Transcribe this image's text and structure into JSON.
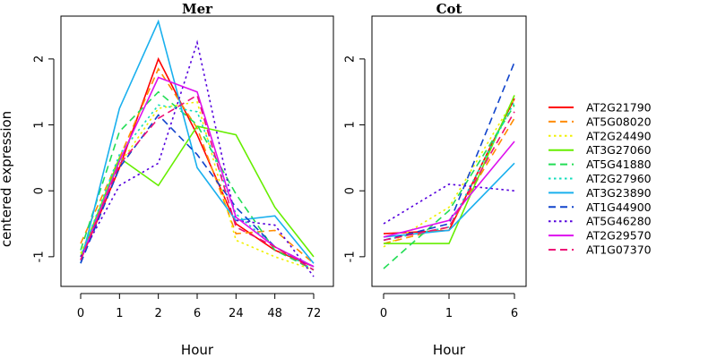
{
  "figure": {
    "ylabel": "centered expression",
    "legend": {
      "placement": "right",
      "entries": [
        {
          "name": "AT2G21790",
          "color": "#ff0000",
          "dash": "solid"
        },
        {
          "name": "AT5G08020",
          "color": "#ff8c00",
          "dash": "dashed"
        },
        {
          "name": "AT2G24490",
          "color": "#f0f000",
          "dash": "dotted"
        },
        {
          "name": "AT3G27060",
          "color": "#66ee00",
          "dash": "solid"
        },
        {
          "name": "AT5G41880",
          "color": "#22dd55",
          "dash": "dashed"
        },
        {
          "name": "AT2G27960",
          "color": "#11ddbb",
          "dash": "dotted"
        },
        {
          "name": "AT3G23890",
          "color": "#1ab0ee",
          "dash": "solid"
        },
        {
          "name": "AT1G44900",
          "color": "#1144cc",
          "dash": "dashed"
        },
        {
          "name": "AT5G46280",
          "color": "#5500dd",
          "dash": "dotted"
        },
        {
          "name": "AT2G29570",
          "color": "#dd11ee",
          "dash": "solid"
        },
        {
          "name": "AT1G07370",
          "color": "#ee1177",
          "dash": "dashed"
        }
      ]
    }
  },
  "chart_data": [
    {
      "type": "line",
      "title": "Mer",
      "xlabel": "Hour",
      "ylabel": "centered expression",
      "categories": [
        "0",
        "1",
        "2",
        "6",
        "24",
        "48",
        "72"
      ],
      "ylim": [
        -1.45,
        2.65
      ],
      "yticks": [
        -1,
        0,
        1,
        2
      ],
      "grid": false,
      "series": [
        {
          "name": "AT2G21790",
          "values": [
            -1.05,
            0.35,
            2.0,
            0.85,
            -0.5,
            -0.9,
            -1.15
          ]
        },
        {
          "name": "AT5G08020",
          "values": [
            -0.8,
            0.5,
            1.85,
            0.95,
            -0.65,
            -0.6,
            -1.1
          ]
        },
        {
          "name": "AT2G24490",
          "values": [
            -0.95,
            0.4,
            1.25,
            1.35,
            -0.75,
            -1.0,
            -1.2
          ]
        },
        {
          "name": "AT3G27060",
          "values": [
            -1.0,
            0.5,
            0.08,
            0.98,
            0.85,
            -0.25,
            -1.0
          ]
        },
        {
          "name": "AT5G41880",
          "values": [
            -0.9,
            0.9,
            1.5,
            1.0,
            -0.05,
            -0.9,
            -1.2
          ]
        },
        {
          "name": "AT2G27960",
          "values": [
            -1.0,
            0.55,
            1.3,
            1.2,
            -0.35,
            -0.85,
            -1.2
          ]
        },
        {
          "name": "AT3G23890",
          "values": [
            -1.1,
            1.25,
            2.57,
            0.35,
            -0.45,
            -0.38,
            -1.1
          ]
        },
        {
          "name": "AT1G44900",
          "values": [
            -1.1,
            0.35,
            1.15,
            0.55,
            -0.25,
            -0.85,
            -1.15
          ]
        },
        {
          "name": "AT5G46280",
          "values": [
            -1.0,
            0.08,
            0.42,
            2.25,
            -0.45,
            -0.52,
            -1.3
          ]
        },
        {
          "name": "AT2G29570",
          "values": [
            -1.05,
            0.45,
            1.72,
            1.5,
            -0.4,
            -0.85,
            -1.15
          ]
        },
        {
          "name": "AT1G07370",
          "values": [
            -1.05,
            0.4,
            1.1,
            1.45,
            -0.55,
            -0.85,
            -1.2
          ]
        }
      ]
    },
    {
      "type": "line",
      "title": "Cot",
      "xlabel": "Hour",
      "ylabel": "",
      "categories": [
        "0",
        "1",
        "6"
      ],
      "ylim": [
        -1.45,
        2.65
      ],
      "yticks": [
        -1,
        0,
        1,
        2
      ],
      "grid": false,
      "series": [
        {
          "name": "AT2G21790",
          "values": [
            -0.65,
            -0.6,
            1.4
          ]
        },
        {
          "name": "AT5G08020",
          "values": [
            -0.8,
            -0.55,
            1.1
          ]
        },
        {
          "name": "AT2G24490",
          "values": [
            -0.85,
            -0.25,
            1.4
          ]
        },
        {
          "name": "AT3G27060",
          "values": [
            -0.8,
            -0.8,
            1.45
          ]
        },
        {
          "name": "AT5G41880",
          "values": [
            -1.18,
            -0.3,
            1.3
          ]
        },
        {
          "name": "AT2G27960",
          "values": [
            -0.75,
            -0.55,
            1.35
          ]
        },
        {
          "name": "AT3G23890",
          "values": [
            -0.7,
            -0.6,
            0.42
          ]
        },
        {
          "name": "AT1G44900",
          "values": [
            -0.75,
            -0.5,
            1.95
          ]
        },
        {
          "name": "AT5G46280",
          "values": [
            -0.5,
            0.1,
            0.0
          ]
        },
        {
          "name": "AT2G29570",
          "values": [
            -0.7,
            -0.45,
            0.75
          ]
        },
        {
          "name": "AT1G07370",
          "values": [
            -0.75,
            -0.55,
            1.2
          ]
        }
      ]
    }
  ]
}
